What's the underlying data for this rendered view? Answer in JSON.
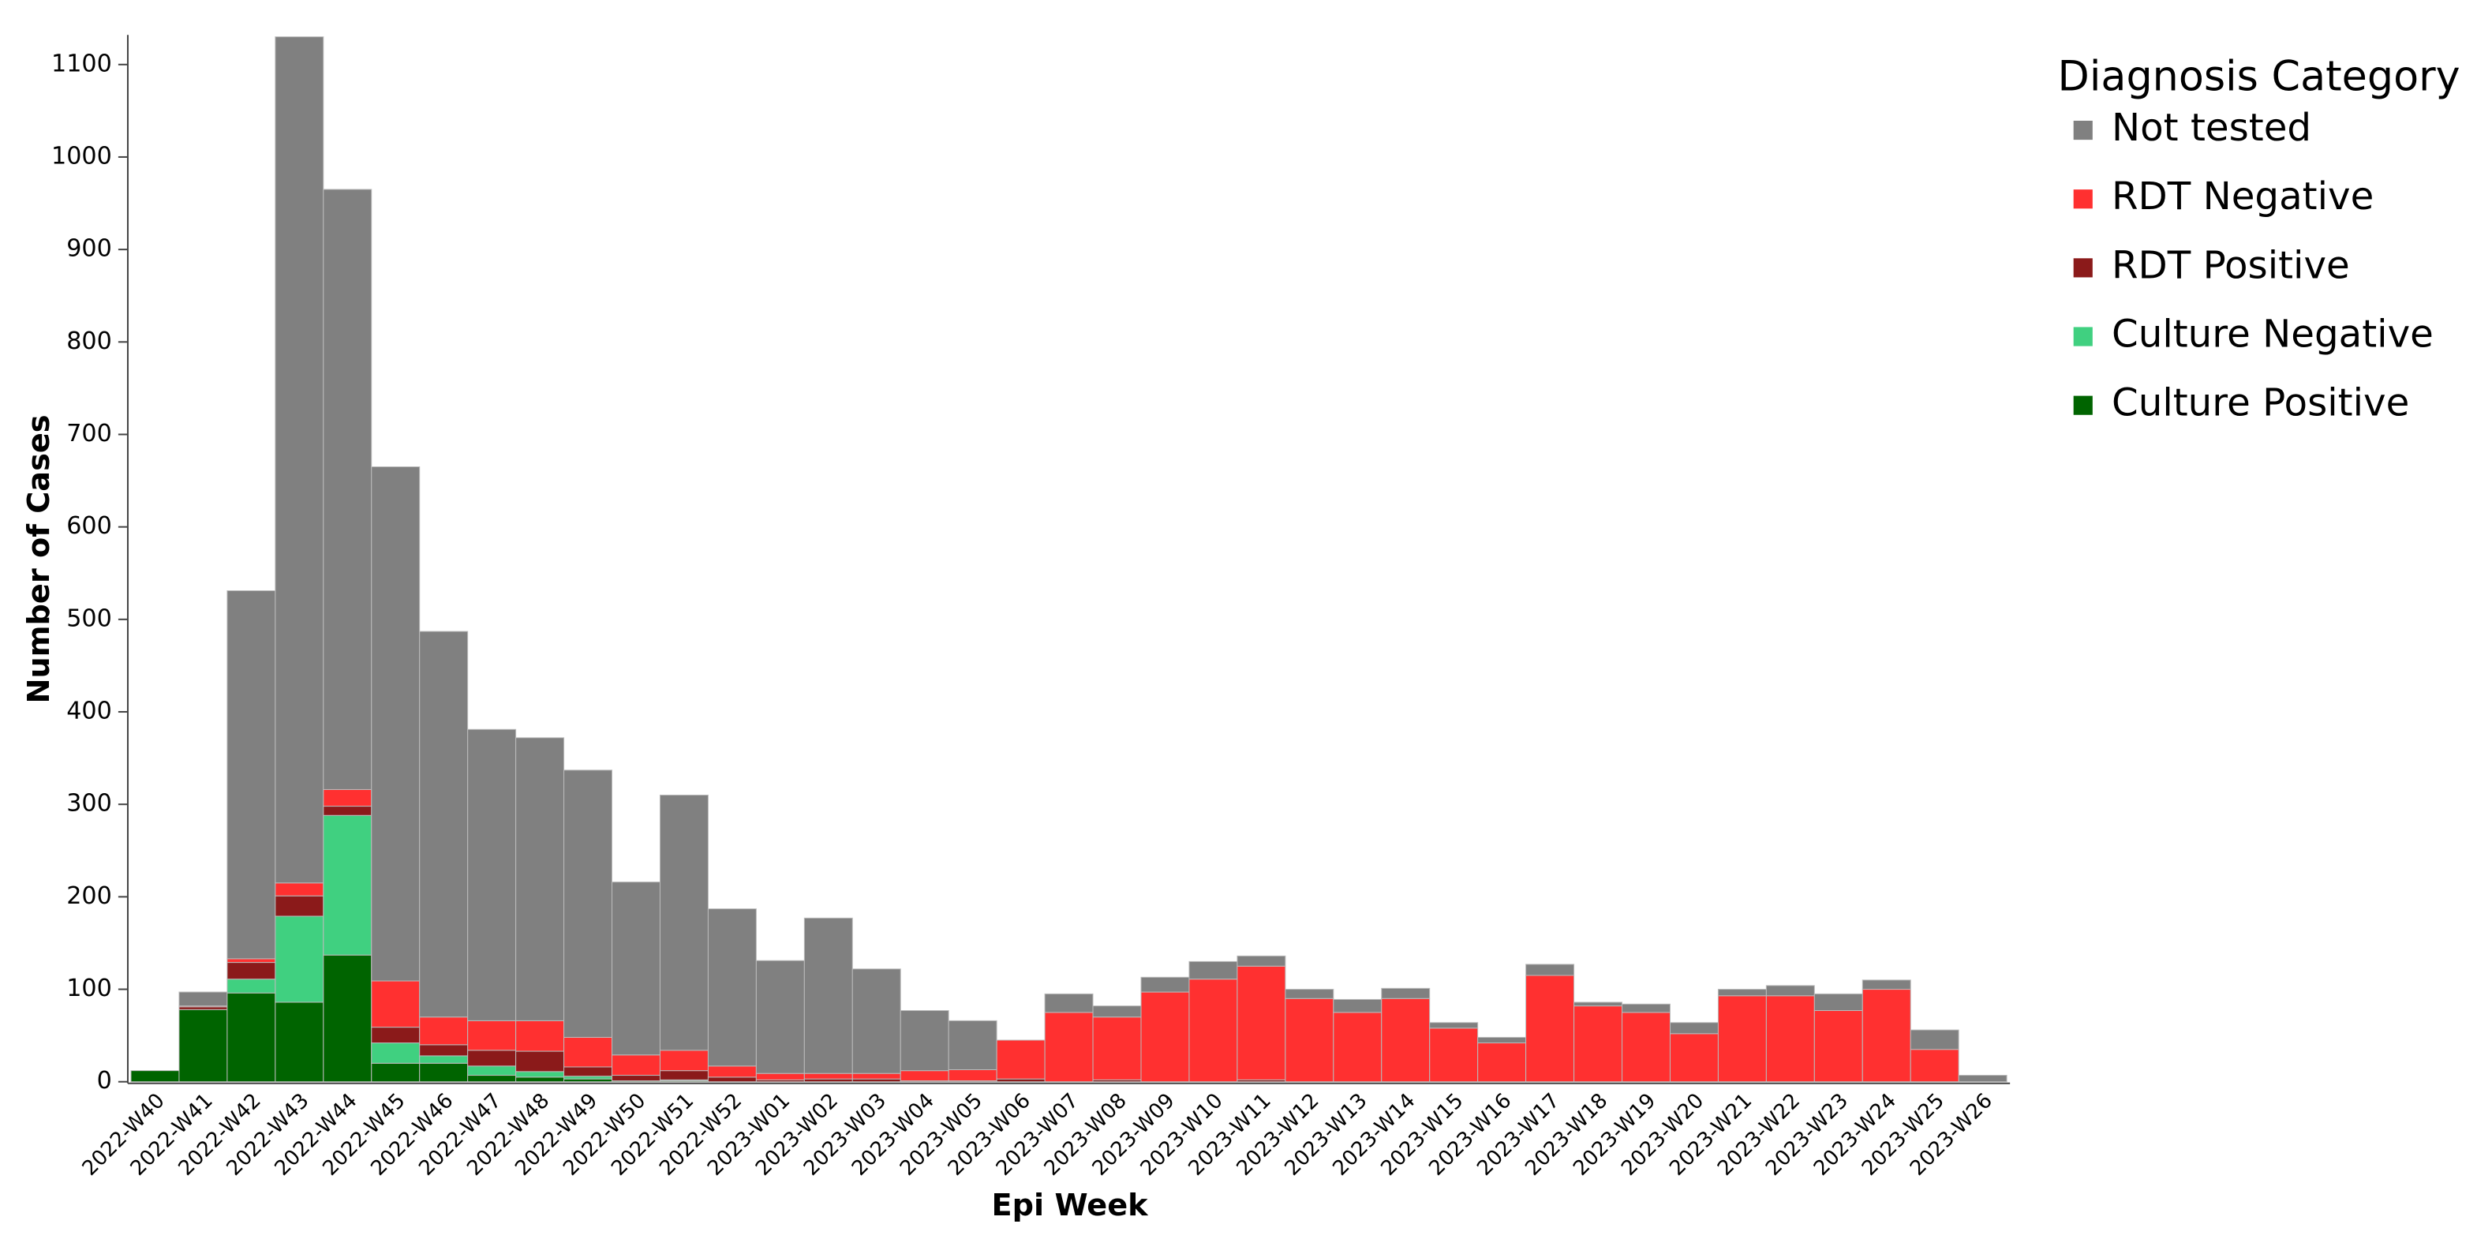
{
  "chart_data": {
    "type": "stacked_bar",
    "xlabel": "Epi Week",
    "ylabel": "Number of Cases",
    "legend_title": "Diagnosis Category",
    "legend_position": "right",
    "categories": [
      "2022-W40",
      "2022-W41",
      "2022-W42",
      "2022-W43",
      "2022-W44",
      "2022-W45",
      "2022-W46",
      "2022-W47",
      "2022-W48",
      "2022-W49",
      "2022-W50",
      "2022-W51",
      "2022-W52",
      "2023-W01",
      "2023-W02",
      "2023-W03",
      "2023-W04",
      "2023-W05",
      "2023-W06",
      "2023-W07",
      "2023-W08",
      "2023-W09",
      "2023-W10",
      "2023-W11",
      "2023-W12",
      "2023-W13",
      "2023-W14",
      "2023-W15",
      "2023-W16",
      "2023-W17",
      "2023-W18",
      "2023-W19",
      "2023-W20",
      "2023-W21",
      "2023-W22",
      "2023-W23",
      "2023-W24",
      "2023-W25",
      "2023-W26"
    ],
    "series": [
      {
        "name": "Not tested",
        "color": "#808080",
        "values": [
          0,
          15,
          398,
          915,
          649,
          556,
          417,
          315,
          306,
          289,
          187,
          276,
          170,
          122,
          168,
          113,
          65,
          53,
          0,
          20,
          12,
          16,
          19,
          11,
          10,
          14,
          11,
          6,
          6,
          12,
          4,
          9,
          12,
          7,
          11,
          18,
          10,
          21,
          7
        ]
      },
      {
        "name": "RDT Negative",
        "color": "#ff3030",
        "values": [
          0,
          1,
          4,
          14,
          18,
          50,
          30,
          32,
          33,
          32,
          22,
          22,
          12,
          7,
          6,
          6,
          11,
          12,
          42,
          75,
          68,
          97,
          111,
          123,
          90,
          75,
          90,
          58,
          42,
          115,
          82,
          75,
          52,
          93,
          93,
          77,
          100,
          35,
          0
        ]
      },
      {
        "name": "RDT Positive",
        "color": "#8b1a1a",
        "values": [
          0,
          3,
          18,
          22,
          10,
          17,
          12,
          17,
          22,
          10,
          6,
          10,
          5,
          2,
          3,
          3,
          1,
          1,
          3,
          0,
          2,
          0,
          0,
          2,
          0,
          0,
          0,
          0,
          0,
          0,
          0,
          0,
          0,
          0,
          0,
          0,
          0,
          0,
          0
        ]
      },
      {
        "name": "Culture Negative",
        "color": "#40d080",
        "values": [
          0,
          0,
          15,
          93,
          151,
          22,
          8,
          10,
          6,
          3,
          0,
          1,
          0,
          0,
          0,
          0,
          0,
          0,
          0,
          0,
          0,
          0,
          0,
          0,
          0,
          0,
          0,
          0,
          0,
          0,
          0,
          0,
          0,
          0,
          0,
          0,
          0,
          0,
          0
        ]
      },
      {
        "name": "Culture Positive",
        "color": "#006400",
        "values": [
          12,
          78,
          96,
          86,
          137,
          20,
          20,
          7,
          5,
          3,
          1,
          1,
          0,
          0,
          0,
          0,
          0,
          0,
          0,
          0,
          0,
          0,
          0,
          0,
          0,
          0,
          0,
          0,
          0,
          0,
          0,
          0,
          0,
          0,
          0,
          0,
          0,
          0,
          0
        ]
      }
    ],
    "ylim": [
      0,
      1132
    ],
    "yticks": [
      0,
      100,
      200,
      300,
      400,
      500,
      600,
      700,
      800,
      900,
      1000,
      1100
    ],
    "grid": false
  }
}
